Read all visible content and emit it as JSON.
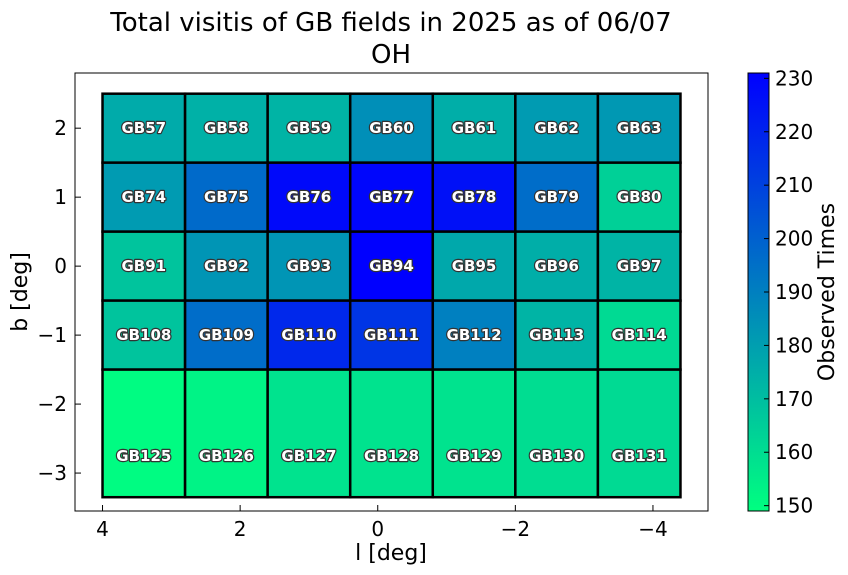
{
  "chart_data": {
    "type": "heatmap",
    "title": "Total visitis of GB fields in 2025 as of 06/07",
    "subtitle": "OH",
    "xlabel": "l [deg]",
    "ylabel": "b [deg]",
    "xlim": [
      4.4,
      -4.8
    ],
    "ylim": [
      -3.55,
      2.8
    ],
    "x_ticks": [
      4,
      2,
      0,
      -2,
      -4
    ],
    "x_tick_labels": [
      "4",
      "2",
      "0",
      "−2",
      "−4"
    ],
    "y_ticks": [
      2,
      1,
      0,
      -1,
      -2,
      -3
    ],
    "y_tick_labels": [
      "2",
      "1",
      "0",
      "−1",
      "−2",
      "−3"
    ],
    "colorbar": {
      "label": "Observed Times",
      "min": 149,
      "max": 231,
      "ticks": [
        150,
        160,
        170,
        180,
        190,
        200,
        210,
        220,
        230
      ],
      "colors": [
        "#00ff80",
        "#0000ff"
      ]
    },
    "columns_l": [
      3.4,
      2.2,
      1.0,
      -0.2,
      -1.4,
      -2.6,
      -3.8
    ],
    "col_width": 1.2,
    "rows_b": [
      2.0,
      1.0,
      0.0,
      -1.0,
      -2.0
    ],
    "row_height": 1.0,
    "row_centers_b": [
      2.0,
      1.0,
      0.0,
      -1.0,
      -2.75
    ],
    "row_spans_b": [
      [
        1.5,
        2.5
      ],
      [
        0.5,
        1.5
      ],
      [
        -0.5,
        0.5
      ],
      [
        -1.5,
        -0.5
      ],
      [
        -3.35,
        -1.5
      ]
    ],
    "fields": [
      [
        "GB57",
        "GB58",
        "GB59",
        "GB60",
        "GB61",
        "GB62",
        "GB63"
      ],
      [
        "GB74",
        "GB75",
        "GB76",
        "GB77",
        "GB78",
        "GB79",
        "GB80"
      ],
      [
        "GB91",
        "GB92",
        "GB93",
        "GB94",
        "GB95",
        "GB96",
        "GB97"
      ],
      [
        "GB108",
        "GB109",
        "GB110",
        "GB111",
        "GB112",
        "GB113",
        "GB114"
      ],
      [
        "GB125",
        "GB126",
        "GB127",
        "GB128",
        "GB129",
        "GB130",
        "GB131"
      ]
    ],
    "values": [
      [
        176,
        174,
        173,
        185,
        175,
        181,
        182
      ],
      [
        181,
        197,
        228,
        229,
        226,
        196,
        164
      ],
      [
        168,
        183,
        183,
        231,
        177,
        175,
        173
      ],
      [
        168,
        196,
        218,
        214,
        190,
        173,
        161
      ],
      [
        150,
        153,
        158,
        158,
        158,
        160,
        161
      ]
    ]
  }
}
